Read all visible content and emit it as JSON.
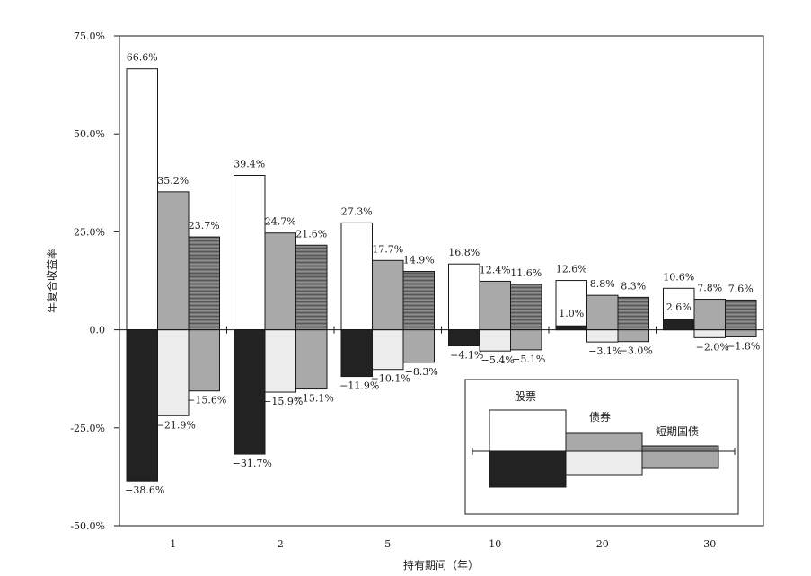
{
  "chart_data": {
    "type": "bar",
    "title": "",
    "xlabel": "持有期间（年）",
    "ylabel": "年复合收益率",
    "ylim": [
      -50,
      75
    ],
    "y_ticks": [
      "75.0%",
      "50.0%",
      "25.0%",
      "0.0",
      "-25.0%",
      "-50.0%"
    ],
    "y_tick_values": [
      75,
      50,
      25,
      0,
      -25,
      -50
    ],
    "grid": false,
    "categories": [
      "1",
      "2",
      "5",
      "10",
      "20",
      "30"
    ],
    "series": [
      {
        "name": "股票",
        "max": [
          66.6,
          39.4,
          27.3,
          16.8,
          12.6,
          10.6
        ],
        "min": [
          -38.6,
          -31.7,
          -11.9,
          -4.1,
          1.0,
          2.6
        ],
        "max_labels": [
          "66.6%",
          "39.4%",
          "27.3%",
          "16.8%",
          "12.6%",
          "10.6%"
        ],
        "min_labels": [
          "−38.6%",
          "−31.7%",
          "−11.9%",
          "−4.1%",
          "1.0%",
          "2.6%"
        ]
      },
      {
        "name": "债券",
        "max": [
          35.2,
          24.7,
          17.7,
          12.4,
          8.8,
          7.8
        ],
        "min": [
          -21.9,
          -15.9,
          -10.1,
          -5.4,
          -3.1,
          -2.0
        ],
        "max_labels": [
          "35.2%",
          "24.7%",
          "17.7%",
          "12.4%",
          "8.8%",
          "7.8%"
        ],
        "min_labels": [
          "−21.9%",
          "−15.9%",
          "−10.1%",
          "−5.4%",
          "−3.1%",
          "−2.0%"
        ]
      },
      {
        "name": "短期国债",
        "max": [
          23.7,
          21.6,
          14.9,
          11.6,
          8.3,
          7.6
        ],
        "min": [
          -15.6,
          -15.1,
          -8.3,
          -5.1,
          -3.0,
          -1.8
        ],
        "max_labels": [
          "23.7%",
          "21.6%",
          "14.9%",
          "11.6%",
          "8.3%",
          "7.6%"
        ],
        "min_labels": [
          "−15.6%",
          "−15.1%",
          "−8.3%",
          "−5.1%",
          "−3.0%",
          "−1.8%"
        ]
      }
    ],
    "legend": {
      "position": "bottom-right",
      "labels": [
        "股票",
        "债券",
        "短期国债"
      ]
    },
    "colors": {
      "stock_max": "#ffffff",
      "stock_min": "#222222",
      "bond_max": "#a9a9a9",
      "bond_min": "#ededed",
      "bill_max": "#7a7a7a",
      "bill_min": "#a9a9a9",
      "stroke": "#1a1a1a"
    }
  }
}
